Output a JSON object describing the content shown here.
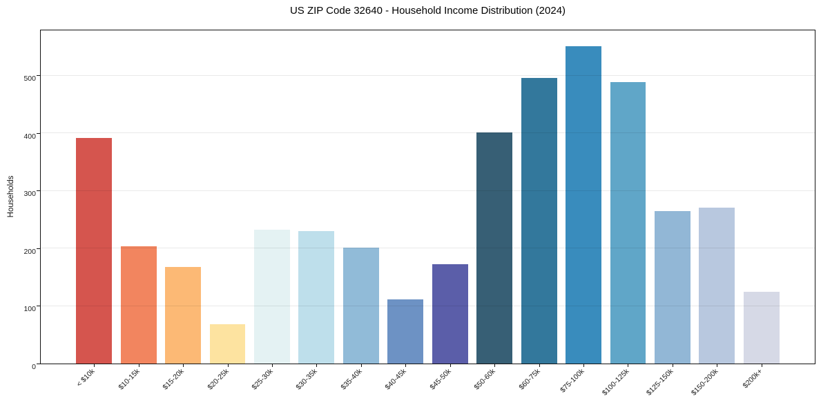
{
  "chart_data": {
    "type": "bar",
    "title": "US ZIP Code 32640 - Household Income Distribution (2024)",
    "xlabel": "",
    "ylabel": "Households",
    "ylim": [
      0,
      578
    ],
    "yticks": [
      0,
      100,
      200,
      300,
      400,
      500
    ],
    "grid": "horizontal, light gray, drawn over bars",
    "legend": "none",
    "categories": [
      "< $10k",
      "$10-15k",
      "$15-20k",
      "$20-25k",
      "$25-30k",
      "$30-35k",
      "$35-40k",
      "$40-45k",
      "$45-50k",
      "$50-60k",
      "$60-75k",
      "$75-100k",
      "$100-125k",
      "$125-150k",
      "$150-200k",
      "$200k+"
    ],
    "values": [
      391,
      204,
      167,
      68,
      232,
      230,
      201,
      111,
      172,
      401,
      495,
      551,
      488,
      265,
      271,
      124
    ],
    "bar_colors": [
      "#d5554e",
      "#f2855f",
      "#fcb975",
      "#fde3a0",
      "#e4f2f3",
      "#bedfeb",
      "#91bbd8",
      "#6d92c4",
      "#5b5ea9",
      "#375f75",
      "#33789c",
      "#398cbd",
      "#60a6c8",
      "#92b7d6",
      "#b8c8df",
      "#d6d9e6"
    ]
  },
  "colors": {
    "background": "#ffffff",
    "axis_line": "#111111",
    "grid_line": "#e8e8e8",
    "tick_text": "#1a1a1a",
    "title_text": "#000000"
  }
}
